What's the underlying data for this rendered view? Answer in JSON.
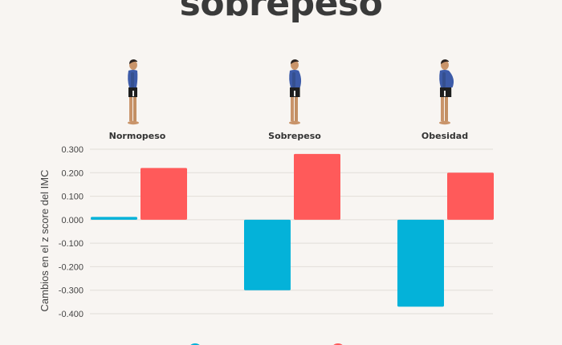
{
  "title": "sobrepeso",
  "colors": {
    "series1": "#04b2d9",
    "series2": "#ff5a5a",
    "background": "#f8f5f2"
  },
  "chart_data": {
    "type": "bar",
    "categories": [
      "Normopeso",
      "Sobrepeso",
      "Obesidad"
    ],
    "series": [
      {
        "values": [
          0.012,
          -0.3,
          -0.37
        ]
      },
      {
        "values": [
          0.22,
          0.28,
          0.2
        ]
      }
    ],
    "ylabel": "Cambios en el z score del IMC",
    "ylim": [
      -0.4,
      0.3
    ],
    "yticks": [
      0.3,
      0.2,
      0.1,
      0.0,
      -0.1,
      -0.2,
      -0.3,
      -0.4
    ],
    "ytick_labels": [
      "0.300",
      "0.200",
      "0.100",
      "0.000",
      "-0.100",
      "-0.200",
      "-0.300",
      "-0.400"
    ],
    "grid": true,
    "legend": "bottom"
  },
  "icons": [
    "person-normal-weight-icon",
    "person-overweight-icon",
    "person-obese-icon"
  ]
}
